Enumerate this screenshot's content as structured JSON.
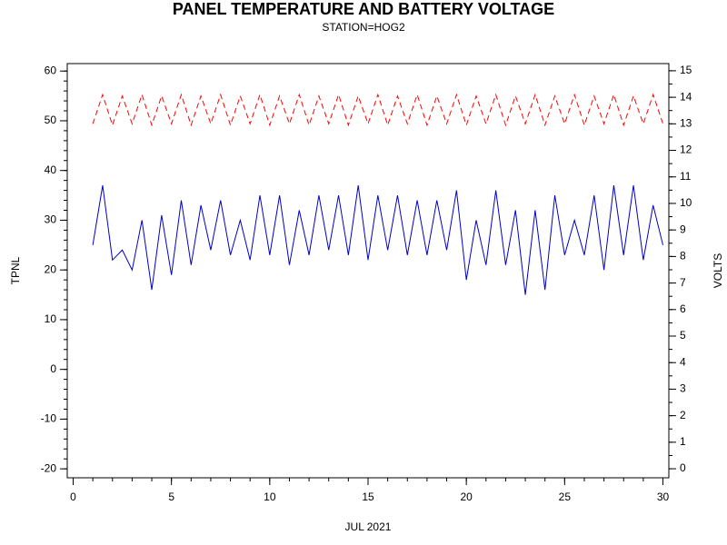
{
  "chart_data": {
    "type": "line",
    "title": "PANEL TEMPERATURE AND BATTERY VOLTAGE",
    "subtitle": "STATION=HOG2",
    "xlabel": "JUL 2021",
    "ylabel": "TPNL",
    "y2label": "VOLTS",
    "x": [
      1,
      1.5,
      2,
      2.5,
      3,
      3.5,
      4,
      4.5,
      5,
      5.5,
      6,
      6.5,
      7,
      7.5,
      8,
      8.5,
      9,
      9.5,
      10,
      10.5,
      11,
      11.5,
      12,
      12.5,
      13,
      13.5,
      14,
      14.5,
      15,
      15.5,
      16,
      16.5,
      17,
      17.5,
      18,
      18.5,
      19,
      19.5,
      20,
      20.5,
      21,
      21.5,
      22,
      22.5,
      23,
      23.5,
      24,
      24.5,
      25,
      25.5,
      26,
      26.5,
      27,
      27.5,
      28,
      28.5,
      29,
      29.5,
      30
    ],
    "series": [
      {
        "name": "TPNL",
        "color": "#0000cc",
        "dash": "none",
        "values": [
          25,
          37,
          22,
          24,
          20,
          30,
          16,
          31,
          19,
          34,
          21,
          33,
          24,
          34,
          23,
          30,
          22,
          35,
          23,
          35,
          21,
          32,
          23,
          35,
          24,
          35,
          23,
          37,
          22,
          35,
          24,
          35,
          23,
          34,
          23,
          34,
          24,
          36,
          18,
          30,
          21,
          36,
          21,
          32,
          15,
          32,
          16,
          35,
          23,
          30,
          23,
          35,
          20,
          37,
          23,
          37,
          22,
          33,
          25
        ]
      },
      {
        "name": "VOLTS",
        "color": "#ff0000",
        "dash": "6,4",
        "axis": "y2",
        "values": [
          13.0,
          14.1,
          12.95,
          14.05,
          13.0,
          14.1,
          12.95,
          14.05,
          13.0,
          14.1,
          12.95,
          14.05,
          13.0,
          14.1,
          12.95,
          14.05,
          13.0,
          14.1,
          12.95,
          14.05,
          13.0,
          14.1,
          12.95,
          14.05,
          13.0,
          14.1,
          12.95,
          14.05,
          13.0,
          14.1,
          12.95,
          14.05,
          13.0,
          14.1,
          12.95,
          14.05,
          13.0,
          14.1,
          12.95,
          14.05,
          13.0,
          14.1,
          12.95,
          14.05,
          13.0,
          14.1,
          12.95,
          14.05,
          13.0,
          14.1,
          12.95,
          14.05,
          13.0,
          14.1,
          12.95,
          14.05,
          13.0,
          14.1,
          13.0
        ]
      }
    ],
    "xlim": [
      -0.3,
      30.3
    ],
    "xticks": [
      0,
      5,
      10,
      15,
      20,
      25,
      30
    ],
    "xminorticks": [
      0,
      1,
      2,
      3,
      4,
      5,
      6,
      7,
      8,
      9,
      10,
      11,
      12,
      13,
      14,
      15,
      16,
      17,
      18,
      19,
      20,
      21,
      22,
      23,
      24,
      25,
      26,
      27,
      28,
      29,
      30
    ],
    "ylim": [
      -21.8,
      61.5
    ],
    "yticks": [
      -20,
      -10,
      0,
      10,
      20,
      30,
      40,
      50,
      60
    ],
    "yminorticks": [
      -20,
      -18,
      -16,
      -14,
      -12,
      -10,
      -8,
      -6,
      -4,
      -2,
      0,
      2,
      4,
      6,
      8,
      10,
      12,
      14,
      16,
      18,
      20,
      22,
      24,
      26,
      28,
      30,
      32,
      34,
      36,
      38,
      40,
      42,
      44,
      46,
      48,
      50,
      52,
      54,
      56,
      58,
      60
    ],
    "y2lim": [
      -0.34,
      15.27
    ],
    "y2ticks": [
      0,
      1,
      2,
      3,
      4,
      5,
      6,
      7,
      8,
      9,
      10,
      11,
      12,
      13,
      14,
      15
    ],
    "y2minorticks": [
      0,
      0.5,
      1,
      1.5,
      2,
      2.5,
      3,
      3.5,
      4,
      4.5,
      5,
      5.5,
      6,
      6.5,
      7,
      7.5,
      8,
      8.5,
      9,
      9.5,
      10,
      10.5,
      11,
      11.5,
      12,
      12.5,
      13,
      13.5,
      14,
      14.5,
      15
    ]
  }
}
